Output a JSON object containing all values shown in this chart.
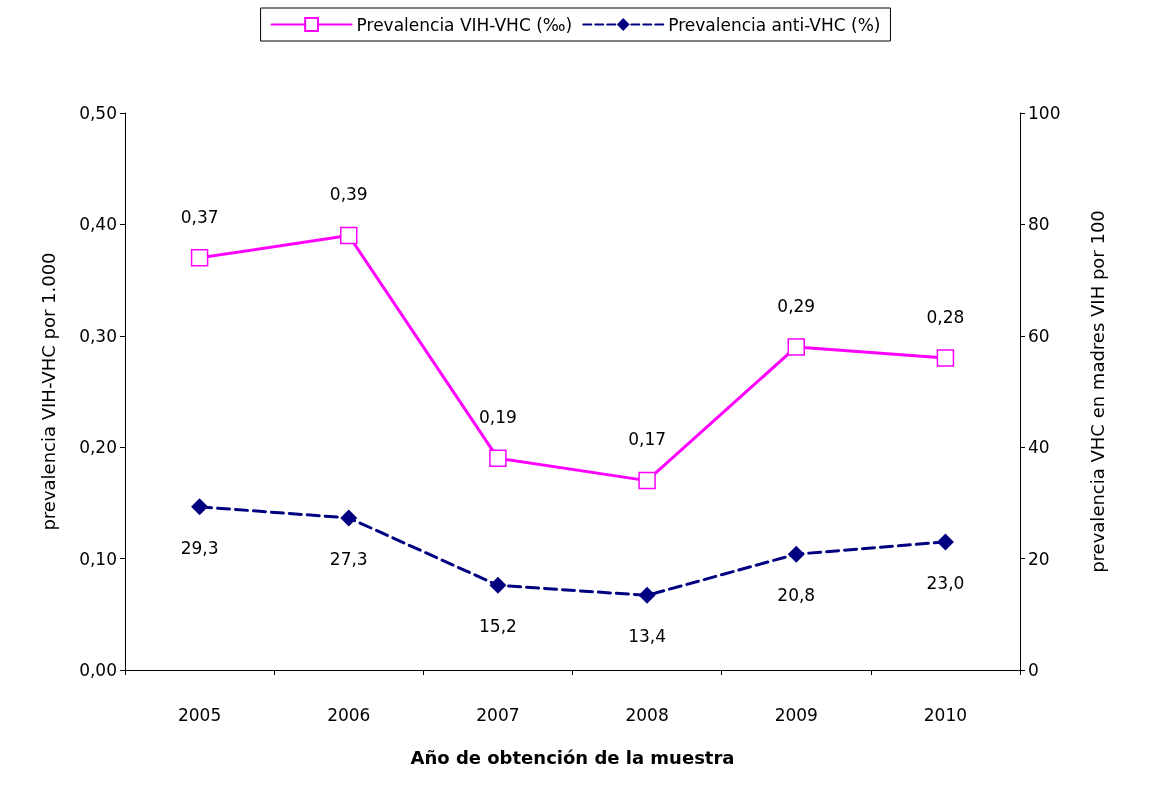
{
  "chart_data": {
    "type": "line",
    "xlabel": "Año de obtención de la muestra",
    "ylabel": "prevalencia VIH-VHC por 1.000",
    "y2label": "prevalencia VHC en madres VIH por 100",
    "categories": [
      "2005",
      "2006",
      "2007",
      "2008",
      "2009",
      "2010"
    ],
    "series": [
      {
        "name": "Prevalencia VIH-VHC (‰)",
        "color": "#ff00ff",
        "marker": "square",
        "line_style": "solid",
        "values": [
          0.37,
          0.39,
          0.19,
          0.17,
          0.29,
          0.28
        ],
        "value_labels": [
          "0,37",
          "0,39",
          "0,19",
          "0,17",
          "0,29",
          "0,28"
        ]
      },
      {
        "name": "Prevalencia anti-VHC (%)",
        "color": "#000080",
        "marker": "diamond",
        "line_style": "dashed",
        "axis": "y2",
        "values": [
          29.3,
          27.3,
          15.2,
          13.4,
          20.8,
          23.0
        ],
        "value_labels": [
          "29,3",
          "27,3",
          "15,2",
          "13,4",
          "20,8",
          "23,0"
        ]
      }
    ],
    "ylim": [
      0,
      0.5
    ],
    "yticks": [
      {
        "value": 0,
        "label": "0,00"
      },
      {
        "value": 0.1,
        "label": "0,10"
      },
      {
        "value": 0.2,
        "label": "0,20"
      },
      {
        "value": 0.3,
        "label": "0,30"
      },
      {
        "value": 0.4,
        "label": "0,40"
      },
      {
        "value": 0.5,
        "label": "0,50"
      }
    ],
    "y2lim": [
      0,
      100
    ],
    "y2ticks": [
      0,
      20,
      40,
      60,
      80,
      100
    ],
    "grid": false,
    "legend": "top"
  }
}
